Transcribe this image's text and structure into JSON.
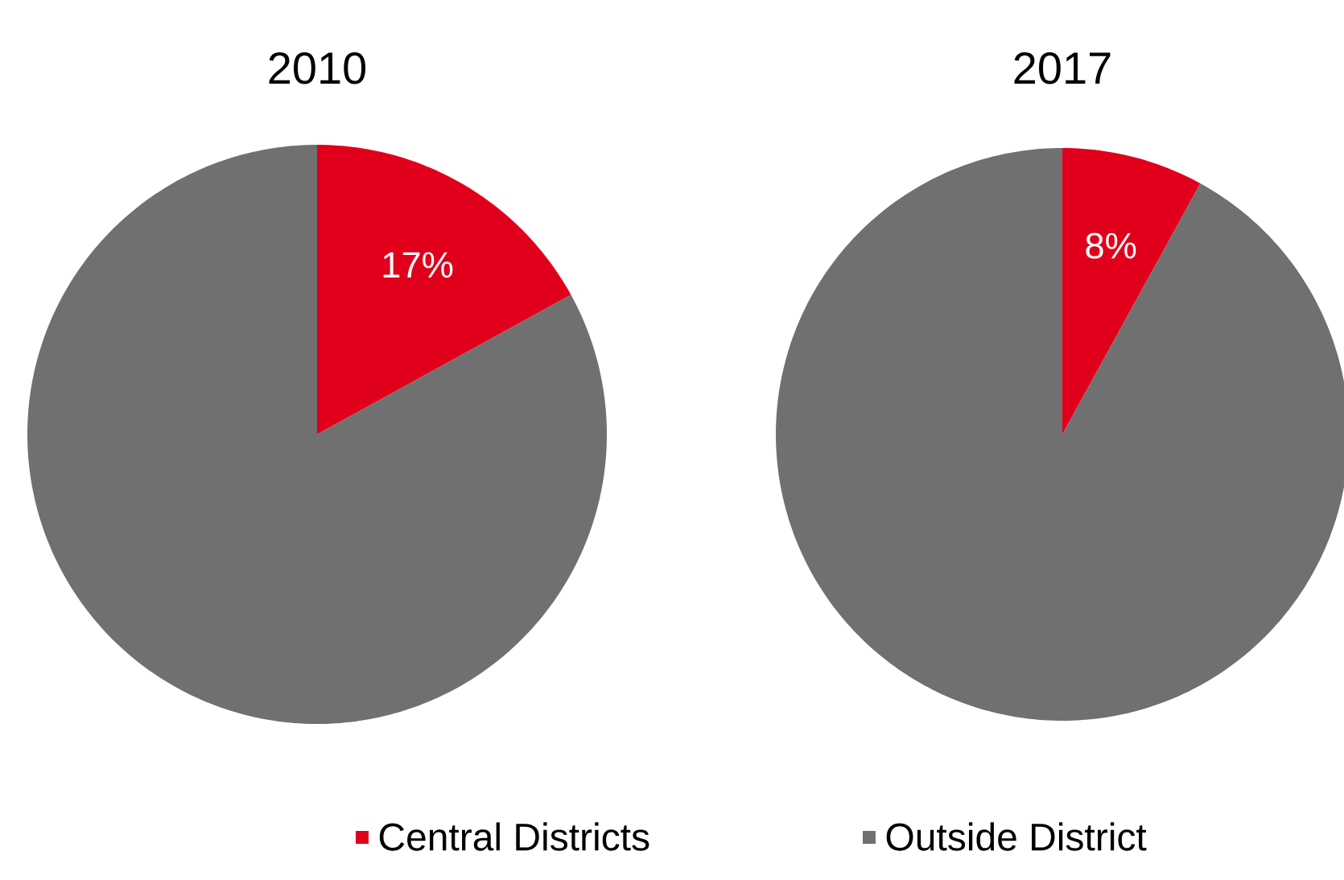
{
  "chart_data": [
    {
      "type": "pie",
      "title": "2010",
      "categories": [
        "Central Districts",
        "Outside District"
      ],
      "values": [
        17,
        83
      ],
      "colors": [
        "#e0001b",
        "#707070"
      ],
      "value_labels": [
        "17%",
        null
      ],
      "legend": "bottom"
    },
    {
      "type": "pie",
      "title": "2017",
      "categories": [
        null,
        null
      ],
      "values": [
        8,
        92
      ],
      "colors": [
        "#e0001b",
        "#707070"
      ],
      "value_labels": [
        "8%",
        null
      ]
    }
  ]
}
